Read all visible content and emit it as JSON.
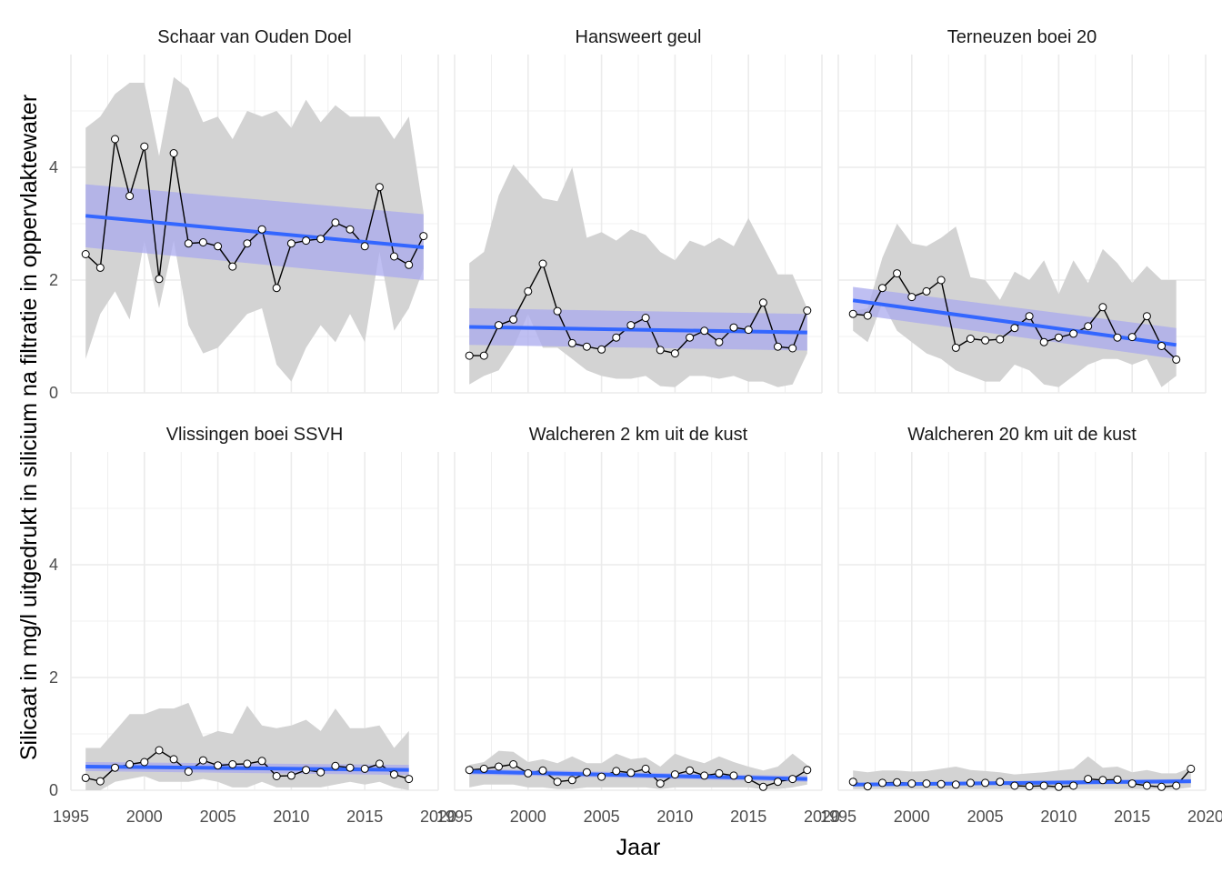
{
  "chart_data": {
    "type": "line",
    "xlabel": "Jaar",
    "ylabel": "Silicaat in mg/l uitgedrukt in silicium na filtratie in oppervlaktewater",
    "xlim": [
      1995,
      2020
    ],
    "ylim": [
      0,
      6
    ],
    "x_ticks": [
      1995,
      2000,
      2005,
      2010,
      2015,
      2020
    ],
    "y_ticks": [
      0,
      2,
      4
    ],
    "colors": {
      "ribbon": "#d3d3d3",
      "trend": "#3366ff",
      "trend_ci": "#aaaaee",
      "line": "#000000",
      "point_fill": "#ffffff",
      "grid": "#ebebeb"
    },
    "panels": [
      {
        "title": "Schaar van Ouden Doel",
        "x": [
          1996,
          1997,
          1998,
          1999,
          2000,
          2001,
          2002,
          2003,
          2004,
          2005,
          2006,
          2007,
          2008,
          2009,
          2010,
          2011,
          2012,
          2013,
          2014,
          2015,
          2016,
          2017,
          2018,
          2019
        ],
        "y": [
          2.46,
          2.22,
          4.5,
          3.49,
          4.37,
          2.02,
          4.25,
          2.65,
          2.67,
          2.6,
          2.24,
          2.65,
          2.9,
          1.86,
          2.65,
          2.7,
          2.73,
          3.02,
          2.9,
          2.6,
          3.65,
          2.42,
          2.27,
          2.78
        ],
        "ribbon_low": [
          0.6,
          1.4,
          1.8,
          1.3,
          2.7,
          1.5,
          2.7,
          1.2,
          0.7,
          0.8,
          1.1,
          1.4,
          1.5,
          0.5,
          0.2,
          0.8,
          1.2,
          0.9,
          1.4,
          0.9,
          2.5,
          1.1,
          1.5,
          2.2
        ],
        "ribbon_high": [
          4.7,
          4.9,
          5.3,
          5.5,
          5.5,
          4.2,
          5.6,
          5.4,
          4.8,
          4.9,
          4.5,
          5.0,
          4.9,
          5.0,
          4.7,
          5.2,
          4.8,
          5.1,
          4.9,
          4.9,
          4.9,
          4.5,
          4.9,
          3.2
        ],
        "trend": {
          "x": [
            1996,
            2019
          ],
          "y": [
            3.14,
            2.58
          ]
        },
        "trend_ci_low": [
          2.58,
          2.0
        ],
        "trend_ci_high": [
          3.7,
          3.17
        ]
      },
      {
        "title": "Hansweert geul",
        "x": [
          1996,
          1997,
          1998,
          1999,
          2000,
          2001,
          2002,
          2003,
          2004,
          2005,
          2006,
          2007,
          2008,
          2009,
          2010,
          2011,
          2012,
          2013,
          2014,
          2015,
          2016,
          2017,
          2018,
          2019
        ],
        "y": [
          0.66,
          0.66,
          1.2,
          1.3,
          1.8,
          2.29,
          1.45,
          0.88,
          0.82,
          0.77,
          0.98,
          1.2,
          1.33,
          0.76,
          0.7,
          0.98,
          1.1,
          0.9,
          1.16,
          1.12,
          1.6,
          0.82,
          0.79,
          1.46
        ],
        "ribbon_low": [
          0.15,
          0.3,
          0.4,
          0.8,
          1.4,
          0.8,
          0.8,
          0.6,
          0.4,
          0.3,
          0.25,
          0.25,
          0.3,
          0.12,
          0.1,
          0.3,
          0.3,
          0.25,
          0.3,
          0.2,
          0.2,
          0.1,
          0.15,
          0.7
        ],
        "ribbon_high": [
          2.3,
          2.5,
          3.5,
          4.05,
          3.75,
          3.45,
          3.4,
          4.0,
          2.75,
          2.85,
          2.7,
          2.9,
          2.8,
          2.5,
          2.35,
          2.7,
          2.6,
          2.75,
          2.6,
          3.1,
          2.6,
          2.1,
          2.1,
          1.5
        ],
        "trend": {
          "x": [
            1996,
            2019
          ],
          "y": [
            1.17,
            1.07
          ]
        },
        "trend_ci_low": [
          0.85,
          0.75
        ],
        "trend_ci_high": [
          1.5,
          1.4
        ]
      },
      {
        "title": "Terneuzen boei 20",
        "x": [
          1996,
          1997,
          1998,
          1999,
          2000,
          2001,
          2002,
          2003,
          2004,
          2005,
          2006,
          2007,
          2008,
          2009,
          2010,
          2011,
          2012,
          2013,
          2014,
          2015,
          2016,
          2017,
          2018
        ],
        "y": [
          1.4,
          1.37,
          1.86,
          2.12,
          1.7,
          1.8,
          2.0,
          0.8,
          0.96,
          0.93,
          0.95,
          1.15,
          1.36,
          0.9,
          0.98,
          1.05,
          1.18,
          1.52,
          0.98,
          0.99,
          1.36,
          0.83,
          0.59
        ],
        "ribbon_low": [
          1.1,
          0.9,
          1.6,
          1.1,
          0.9,
          0.7,
          0.6,
          0.4,
          0.3,
          0.2,
          0.2,
          0.5,
          0.4,
          0.15,
          0.1,
          0.3,
          0.5,
          0.6,
          0.6,
          0.5,
          0.6,
          0.1,
          0.3
        ],
        "ribbon_high": [
          1.45,
          1.5,
          2.4,
          3.0,
          2.65,
          2.6,
          2.75,
          2.95,
          2.05,
          2.0,
          1.65,
          2.15,
          2.0,
          2.35,
          1.75,
          2.35,
          1.95,
          2.55,
          2.3,
          1.95,
          2.25,
          2.0,
          2.0
        ],
        "trend": {
          "x": [
            1996,
            2018
          ],
          "y": [
            1.64,
            0.85
          ]
        },
        "trend_ci_low": [
          1.4,
          0.6
        ],
        "trend_ci_high": [
          1.88,
          1.15
        ]
      },
      {
        "title": "Vlissingen boei SSVH",
        "x": [
          1996,
          1997,
          1998,
          1999,
          2000,
          2001,
          2002,
          2003,
          2004,
          2005,
          2006,
          2007,
          2008,
          2009,
          2010,
          2011,
          2012,
          2013,
          2014,
          2015,
          2016,
          2017,
          2018
        ],
        "y": [
          0.22,
          0.16,
          0.4,
          0.46,
          0.5,
          0.71,
          0.55,
          0.33,
          0.53,
          0.44,
          0.46,
          0.47,
          0.52,
          0.25,
          0.26,
          0.36,
          0.32,
          0.43,
          0.4,
          0.38,
          0.47,
          0.28,
          0.2
        ],
        "ribbon_low": [
          0.0,
          0.0,
          0.15,
          0.2,
          0.25,
          0.15,
          0.15,
          0.15,
          0.2,
          0.15,
          0.05,
          0.05,
          0.15,
          0.05,
          0.05,
          0.05,
          0.05,
          0.1,
          0.15,
          0.1,
          0.15,
          0.05,
          0.0
        ],
        "ribbon_high": [
          0.75,
          0.75,
          1.05,
          1.35,
          1.35,
          1.45,
          1.45,
          1.55,
          0.95,
          1.05,
          1.0,
          1.5,
          1.15,
          1.1,
          1.15,
          1.25,
          1.05,
          1.45,
          1.1,
          1.1,
          1.15,
          0.75,
          1.05
        ],
        "trend": {
          "x": [
            1996,
            2018
          ],
          "y": [
            0.42,
            0.36
          ]
        },
        "trend_ci_low": [
          0.34,
          0.27
        ],
        "trend_ci_high": [
          0.5,
          0.45
        ]
      },
      {
        "title": "Walcheren 2 km uit de kust",
        "x": [
          1996,
          1997,
          1998,
          1999,
          2000,
          2001,
          2002,
          2003,
          2004,
          2005,
          2006,
          2007,
          2008,
          2009,
          2010,
          2011,
          2012,
          2013,
          2014,
          2015,
          2016,
          2017,
          2018,
          2019
        ],
        "y": [
          0.36,
          0.38,
          0.42,
          0.46,
          0.3,
          0.35,
          0.15,
          0.18,
          0.32,
          0.24,
          0.34,
          0.31,
          0.38,
          0.12,
          0.28,
          0.35,
          0.26,
          0.3,
          0.26,
          0.2,
          0.06,
          0.15,
          0.2,
          0.36
        ],
        "ribbon_low": [
          0.05,
          0.1,
          0.1,
          0.1,
          0.05,
          0.05,
          0.02,
          0.02,
          0.05,
          0.05,
          0.05,
          0.05,
          0.05,
          0.02,
          0.05,
          0.05,
          0.05,
          0.05,
          0.05,
          0.05,
          0.02,
          0.02,
          0.05,
          0.1
        ],
        "ribbon_high": [
          0.45,
          0.5,
          0.7,
          0.68,
          0.5,
          0.55,
          0.48,
          0.6,
          0.48,
          0.48,
          0.65,
          0.55,
          0.58,
          0.42,
          0.65,
          0.55,
          0.48,
          0.6,
          0.5,
          0.42,
          0.35,
          0.42,
          0.65,
          0.45
        ],
        "trend": {
          "x": [
            1996,
            2019
          ],
          "y": [
            0.33,
            0.2
          ]
        },
        "trend_ci_low": [
          0.28,
          0.15
        ],
        "trend_ci_high": [
          0.38,
          0.25
        ]
      },
      {
        "title": "Walcheren 20 km uit de kust",
        "x": [
          1996,
          1997,
          1998,
          1999,
          2000,
          2001,
          2002,
          2003,
          2004,
          2005,
          2006,
          2007,
          2008,
          2009,
          2010,
          2011,
          2012,
          2013,
          2014,
          2015,
          2016,
          2017,
          2018,
          2019
        ],
        "y": [
          0.15,
          0.07,
          0.13,
          0.14,
          0.12,
          0.12,
          0.11,
          0.1,
          0.13,
          0.13,
          0.15,
          0.08,
          0.07,
          0.08,
          0.06,
          0.08,
          0.2,
          0.18,
          0.19,
          0.12,
          0.08,
          0.06,
          0.08,
          0.38
        ],
        "ribbon_low": [
          0.02,
          0.02,
          0.02,
          0.02,
          0.02,
          0.02,
          0.02,
          0.02,
          0.02,
          0.02,
          0.02,
          0.02,
          0.02,
          0.02,
          0.02,
          0.02,
          0.02,
          0.02,
          0.02,
          0.02,
          0.02,
          0.02,
          0.02,
          0.05
        ],
        "ribbon_high": [
          0.35,
          0.32,
          0.35,
          0.35,
          0.33,
          0.34,
          0.38,
          0.42,
          0.36,
          0.34,
          0.32,
          0.28,
          0.3,
          0.32,
          0.35,
          0.38,
          0.6,
          0.4,
          0.42,
          0.32,
          0.36,
          0.3,
          0.3,
          0.4
        ],
        "trend": {
          "x": [
            1996,
            2019
          ],
          "y": [
            0.1,
            0.16
          ]
        },
        "trend_ci_low": [
          0.07,
          0.12
        ],
        "trend_ci_high": [
          0.13,
          0.2
        ]
      }
    ]
  }
}
